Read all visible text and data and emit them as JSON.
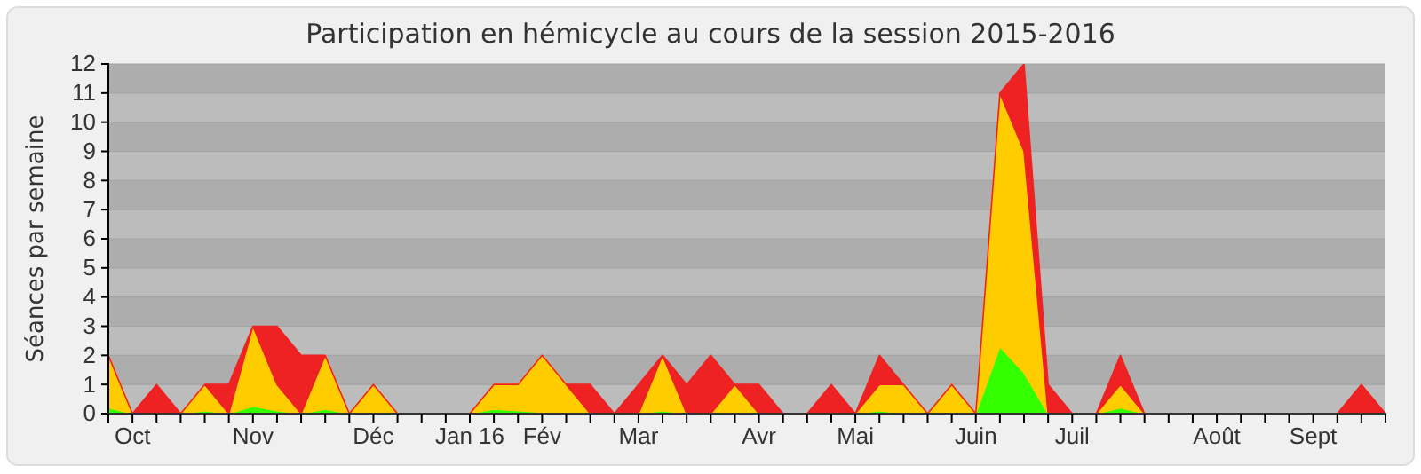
{
  "chart_data": {
    "type": "area",
    "stacked": true,
    "title": "Participation en hémicycle au cours de la session 2015-2016",
    "ylabel": "Séances par semaine",
    "categories": [
      null,
      "Oct",
      null,
      null,
      null,
      null,
      "Nov",
      null,
      null,
      null,
      null,
      "Déc",
      null,
      null,
      null,
      "Jan 16",
      null,
      null,
      "Fév",
      null,
      null,
      null,
      "Mar",
      null,
      null,
      null,
      null,
      "Avr",
      null,
      null,
      null,
      "Mai",
      null,
      null,
      null,
      null,
      "Juin",
      null,
      null,
      null,
      "Juil",
      null,
      null,
      null,
      null,
      null,
      "Août",
      null,
      null,
      null,
      "Sept",
      null,
      null,
      null
    ],
    "series": [
      {
        "color": "#33ff00",
        "values": [
          0.2,
          0,
          0,
          0,
          0.1,
          0,
          0.25,
          0.1,
          0,
          0.15,
          0,
          0.05,
          0,
          0,
          0,
          0,
          0.15,
          0.1,
          0.05,
          0,
          0,
          0,
          0,
          0.1,
          0,
          0,
          0,
          0,
          0,
          0,
          0,
          0,
          0.1,
          0,
          0,
          0,
          0,
          2.3,
          1.4,
          0,
          0,
          0,
          0.2,
          0,
          0,
          0,
          0,
          0,
          0,
          0,
          0,
          0,
          0,
          0
        ]
      },
      {
        "color": "#ffcc00",
        "values": [
          1.8,
          0,
          0,
          0,
          0.9,
          0,
          2.75,
          0.9,
          0,
          1.85,
          0,
          0.95,
          0,
          0,
          0,
          0,
          0.85,
          0.9,
          1.95,
          1,
          0,
          0,
          0,
          1.9,
          0,
          0,
          1,
          0,
          0,
          0,
          0,
          0,
          0.9,
          1,
          0,
          1,
          0,
          8.7,
          7.6,
          0,
          0,
          0,
          0.8,
          0,
          0,
          0,
          0,
          0,
          0,
          0,
          0,
          0,
          0,
          0
        ]
      },
      {
        "color": "#ee2222",
        "values": [
          0,
          0,
          1,
          0,
          0,
          1,
          0,
          2,
          2,
          0,
          0,
          0,
          0,
          0,
          0,
          0,
          0,
          0,
          0,
          0,
          1,
          0,
          1,
          0,
          1,
          2,
          0,
          1,
          0,
          0,
          1,
          0,
          1,
          0,
          0,
          0,
          0,
          0,
          3,
          1,
          0,
          0,
          1,
          0,
          0,
          0,
          0,
          0,
          0,
          0,
          0,
          0,
          1,
          0
        ]
      }
    ],
    "ylim": [
      0,
      12
    ],
    "yticks": [
      0,
      1,
      2,
      3,
      4,
      5,
      6,
      7,
      8,
      9,
      10,
      11,
      12
    ],
    "grid": true
  }
}
